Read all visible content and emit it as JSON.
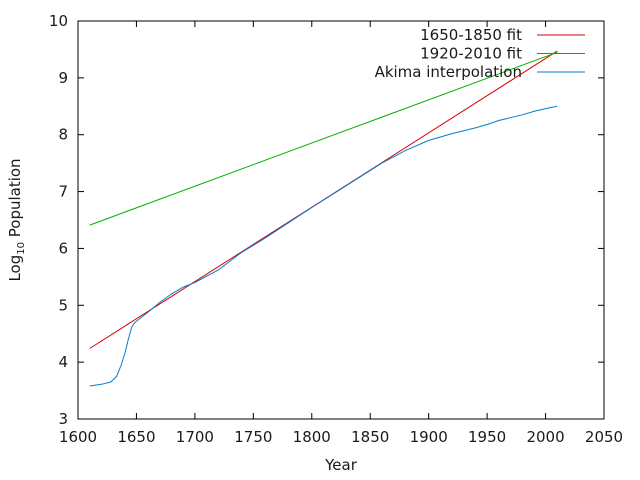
{
  "chart_data": {
    "type": "line",
    "title": "",
    "xlabel": "Year",
    "ylabel_main": "Log",
    "ylabel_sub": "10",
    "ylabel_rest": " Population",
    "xlim": [
      1600,
      2050
    ],
    "ylim": [
      3,
      10
    ],
    "x_ticks": [
      1600,
      1650,
      1700,
      1750,
      1800,
      1850,
      1900,
      1950,
      2000,
      2050
    ],
    "y_ticks": [
      3,
      4,
      5,
      6,
      7,
      8,
      9,
      10
    ],
    "grid": false,
    "legend_position": "top-right",
    "series": [
      {
        "name": "1650-1850 fit",
        "color": "#e00000",
        "x": [
          1610,
          2010
        ],
        "y": [
          4.24,
          9.47
        ]
      },
      {
        "name": "1920-2010 fit",
        "color": "#00b000",
        "x": [
          1610,
          2010
        ],
        "y": [
          6.41,
          9.45
        ]
      },
      {
        "name": "Akima interpolation",
        "color": "#0080d0",
        "x": [
          1610,
          1620,
          1628,
          1633,
          1637,
          1640,
          1643,
          1646,
          1648,
          1650,
          1660,
          1670,
          1680,
          1690,
          1700,
          1720,
          1740,
          1760,
          1780,
          1800,
          1820,
          1840,
          1860,
          1880,
          1900,
          1920,
          1940,
          1950,
          1960,
          1970,
          1980,
          1990,
          2000,
          2010
        ],
        "y": [
          3.58,
          3.61,
          3.65,
          3.75,
          3.95,
          4.15,
          4.4,
          4.62,
          4.68,
          4.72,
          4.88,
          5.05,
          5.2,
          5.32,
          5.4,
          5.62,
          5.93,
          6.18,
          6.45,
          6.72,
          6.98,
          7.24,
          7.5,
          7.72,
          7.9,
          8.02,
          8.12,
          8.18,
          8.25,
          8.3,
          8.35,
          8.41,
          8.46,
          8.5
        ]
      }
    ]
  }
}
